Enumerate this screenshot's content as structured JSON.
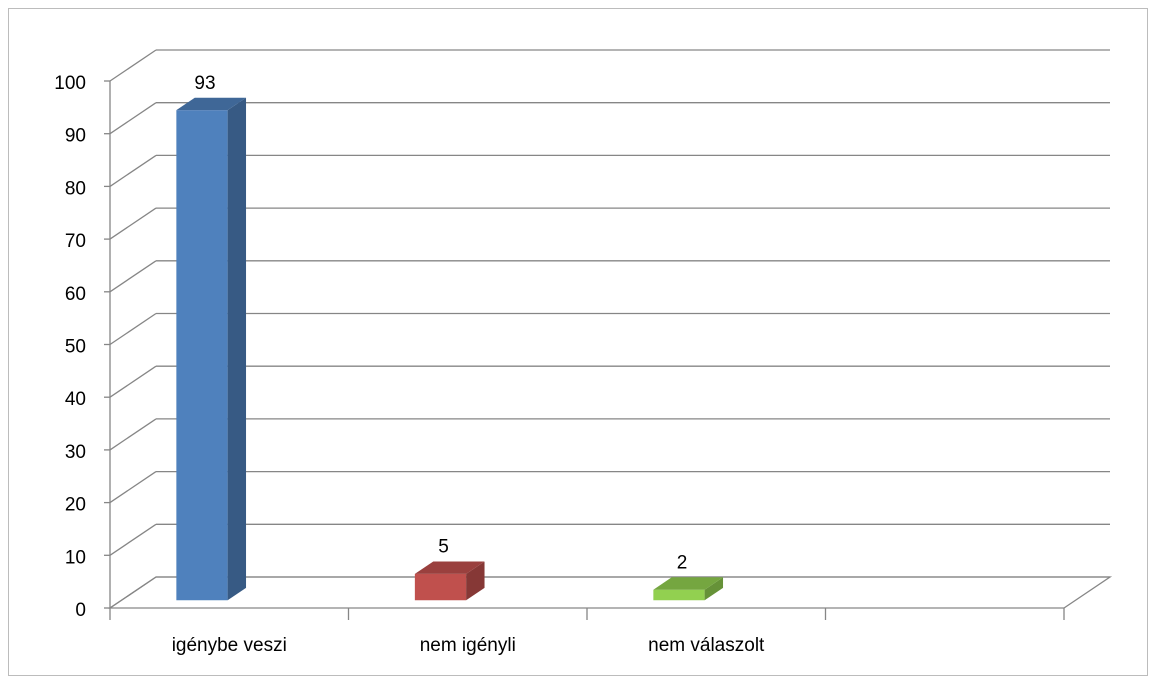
{
  "chart_data": {
    "type": "bar3d",
    "categories": [
      "igénybe veszi",
      "nem igényli",
      "nem válaszolt",
      null
    ],
    "values": [
      93,
      5,
      2,
      null
    ],
    "colors": [
      "#4f81bd",
      "#c0504d",
      "#92d050",
      null
    ],
    "ylim": [
      0,
      100
    ],
    "yticks": [
      0,
      10,
      20,
      30,
      40,
      50,
      60,
      70,
      80,
      90,
      100
    ],
    "grid": true
  }
}
